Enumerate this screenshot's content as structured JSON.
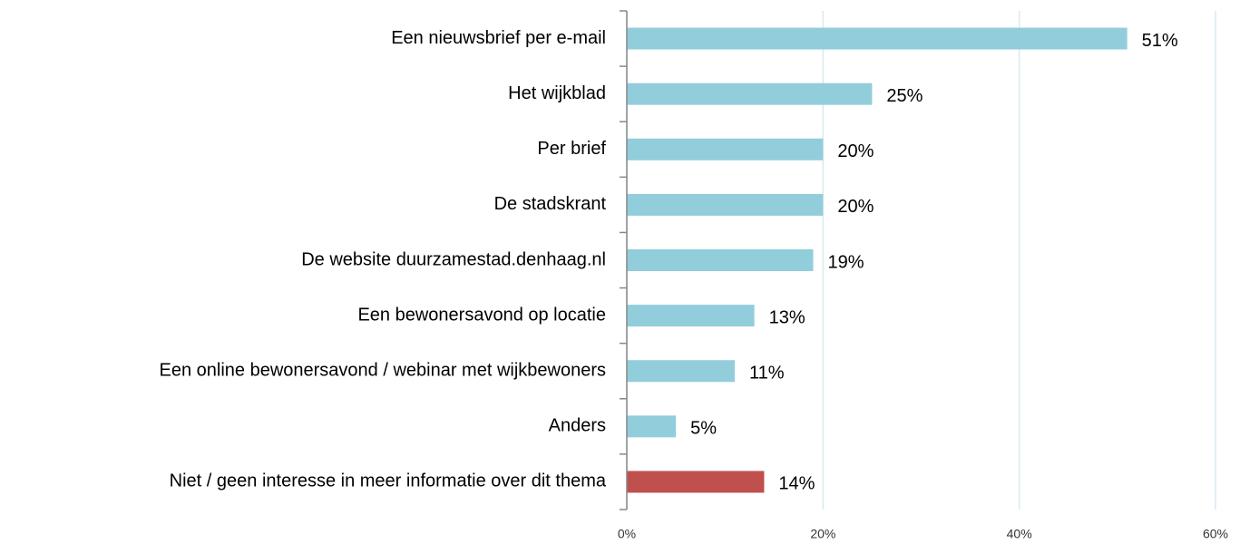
{
  "chart_data": {
    "type": "barh",
    "categories": [
      "Een nieuwsbrief per e-mail",
      "Het wijkblad",
      "Per brief",
      "De stadskrant",
      "De website duurzamestad.denhaag.nl",
      "Een bewonersavond op locatie",
      "Een online bewonersavond / webinar met wijkbewoners",
      "Anders",
      "Niet / geen interesse in meer informatie over dit thema"
    ],
    "values": [
      51,
      25,
      20,
      20,
      19,
      13,
      11,
      5,
      14
    ],
    "value_labels": [
      "51%",
      "25%",
      "20%",
      "20%",
      "19%",
      "13%",
      "11%",
      "5%",
      "14%"
    ],
    "colors": [
      "#92cddc",
      "#92cddc",
      "#92cddc",
      "#92cddc",
      "#92cddc",
      "#92cddc",
      "#92cddc",
      "#92cddc",
      "#c0504d"
    ],
    "xlim": [
      0,
      60
    ],
    "xticks": [
      {
        "value": 0,
        "label": "0%"
      },
      {
        "value": 20,
        "label": "20%"
      },
      {
        "value": 40,
        "label": "40%"
      },
      {
        "value": 60,
        "label": "60%"
      }
    ],
    "grid": true
  }
}
